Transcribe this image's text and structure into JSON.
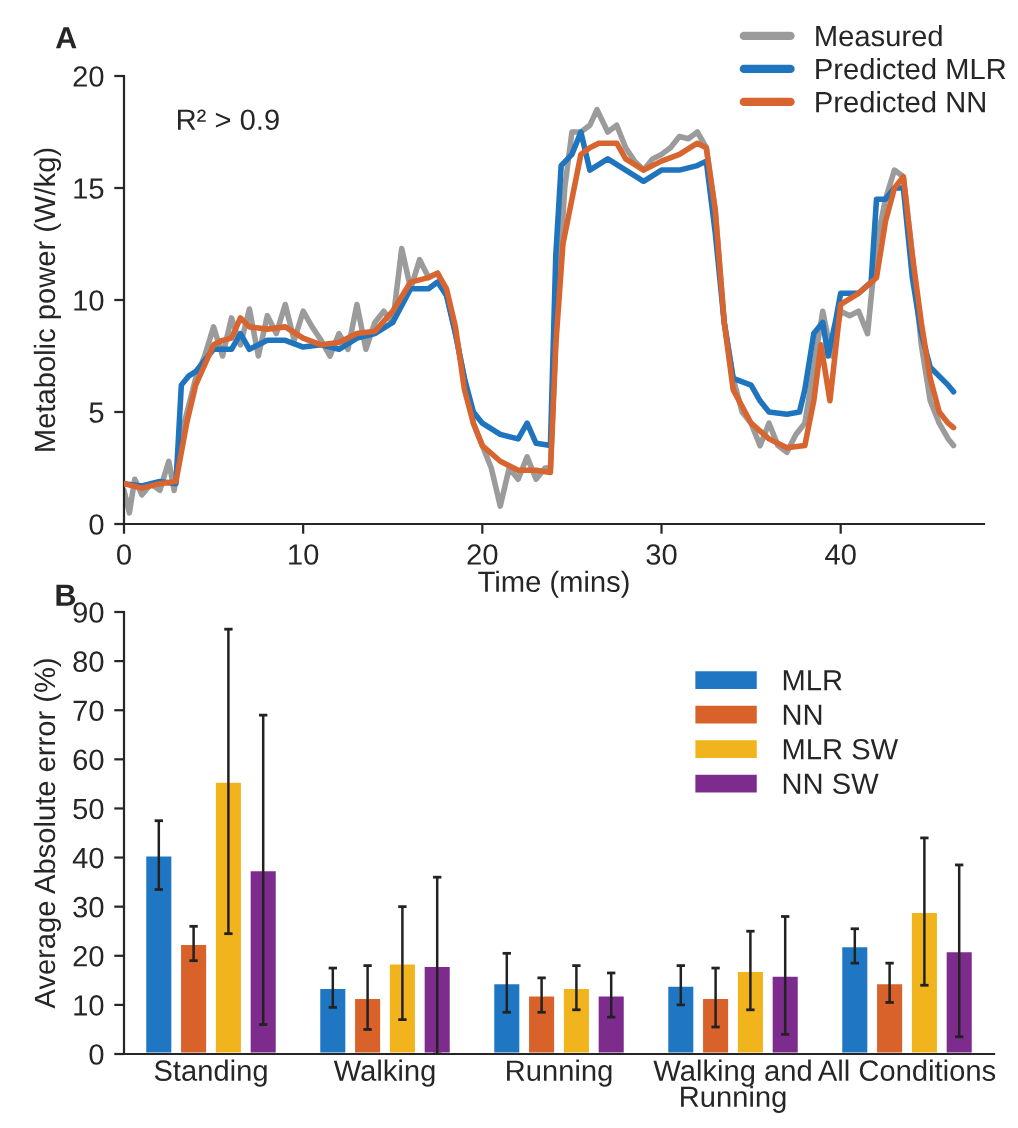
{
  "chart_data": [
    {
      "type": "line",
      "title": "A",
      "xlabel": "Time (mins)",
      "ylabel": "Metabolic power (W/kg)",
      "xlim": [
        0,
        48
      ],
      "xticks": [
        0,
        10,
        20,
        30,
        40
      ],
      "ylim": [
        0,
        20
      ],
      "yticks": [
        0,
        5,
        10,
        15,
        20
      ],
      "grid": false,
      "legend": "top right",
      "annotations": [
        "R² > 0.9"
      ],
      "series": [
        {
          "name": "Measured",
          "color": "#9b9b9b",
          "x": [
            0,
            0.3,
            0.6,
            1,
            1.5,
            2,
            2.5,
            2.8,
            3.2,
            4,
            4.5,
            5,
            5.5,
            6,
            6.5,
            7,
            7.5,
            8,
            8.5,
            9,
            9.5,
            10,
            10.5,
            11,
            11.5,
            12,
            12.5,
            13,
            13.5,
            14,
            14.5,
            15,
            15.5,
            16,
            16.5,
            17,
            17.5,
            18,
            18.5,
            19,
            19.5,
            20,
            20.5,
            21,
            21.5,
            22,
            22.5,
            23,
            23.5,
            23.8,
            24.2,
            24.6,
            25,
            25.5,
            26,
            26.4,
            27,
            27.5,
            28,
            28.5,
            29,
            29.5,
            30,
            30.5,
            31,
            31.5,
            32,
            32.5,
            33,
            33.5,
            34,
            34.5,
            35,
            35.5,
            36,
            36.5,
            37,
            37.5,
            38,
            38.5,
            39,
            39.5,
            40,
            40.5,
            41,
            41.5,
            42,
            42.5,
            43,
            43.5,
            44,
            44.5,
            45,
            45.5,
            46,
            46.3
          ],
          "values": [
            1.5,
            0.5,
            2,
            1.3,
            1.8,
            1.5,
            2.8,
            1.5,
            4,
            6.5,
            7.5,
            8.8,
            7.5,
            9.2,
            8,
            9.6,
            7.5,
            9.3,
            8.5,
            9.8,
            8.2,
            9.5,
            8.8,
            8.2,
            7.5,
            8.5,
            7.8,
            9.8,
            7.8,
            9,
            9.5,
            9,
            12.3,
            10.5,
            11.8,
            11,
            11.2,
            10.3,
            8.5,
            6.5,
            4.5,
            3.5,
            2.5,
            0.8,
            2.5,
            2,
            3,
            2,
            2.5,
            2.5,
            10,
            15,
            17.5,
            17.5,
            17.8,
            18.5,
            17.5,
            17.8,
            16.8,
            16.2,
            15.8,
            16.3,
            16.5,
            16.8,
            17.3,
            17.2,
            17.5,
            16.8,
            14,
            9,
            6.5,
            5,
            4.5,
            3.5,
            4.5,
            3.5,
            3.2,
            4,
            4.5,
            7,
            9.5,
            7.5,
            9.5,
            9.3,
            9.5,
            8.5,
            12.5,
            14.5,
            15.8,
            15.5,
            12,
            8,
            5.5,
            4.5,
            3.8,
            3.5
          ]
        },
        {
          "name": "Predicted MLR",
          "color": "#1f74be",
          "x": [
            0,
            1,
            2,
            2.9,
            3.2,
            3.6,
            4,
            5,
            6,
            6.5,
            7,
            8,
            9,
            10,
            11,
            12,
            13,
            14,
            15,
            16,
            17,
            17.5,
            18,
            18.5,
            19,
            19.5,
            20,
            21,
            22,
            22.5,
            23,
            23.8,
            24.1,
            24.4,
            25,
            25.5,
            26,
            27,
            28,
            29,
            30,
            31,
            32,
            32.5,
            33,
            33.5,
            34,
            35,
            35.5,
            36,
            37,
            37.7,
            38,
            38.5,
            39,
            39.3,
            39.7,
            40,
            41,
            41.7,
            42,
            42.5,
            43,
            43.5,
            44,
            44.5,
            45,
            46,
            46.3
          ],
          "values": [
            1.8,
            1.7,
            1.9,
            1.8,
            6.2,
            6.6,
            6.8,
            7.8,
            7.8,
            8.5,
            7.8,
            8.2,
            8.2,
            7.9,
            8,
            7.8,
            8.3,
            8.5,
            9,
            10.5,
            10.5,
            10.8,
            10.2,
            8.5,
            6.5,
            5,
            4.5,
            4,
            3.8,
            4.5,
            3.6,
            3.5,
            12,
            16,
            16.5,
            17.5,
            15.8,
            16.3,
            15.8,
            15.3,
            15.8,
            15.8,
            16,
            16.2,
            13,
            9,
            6.5,
            6.2,
            5.5,
            5,
            4.9,
            5,
            6,
            8.5,
            9,
            7.5,
            9,
            10.3,
            10.3,
            10.8,
            14.5,
            14.5,
            15,
            15,
            11,
            8.5,
            7,
            6.2,
            5.9
          ]
        },
        {
          "name": "Predicted NN",
          "color": "#d8652f",
          "x": [
            0,
            1,
            2,
            2.9,
            3.5,
            4,
            5,
            5.5,
            6,
            6.5,
            7,
            8,
            9,
            10,
            11,
            12,
            13,
            14,
            15,
            16,
            17,
            17.5,
            18,
            18.5,
            19,
            19.5,
            20,
            21,
            22,
            23,
            23.8,
            24.1,
            24.5,
            25,
            25.5,
            26,
            26.5,
            27.5,
            28,
            29,
            30,
            31,
            32,
            32.5,
            33,
            33.5,
            34,
            35,
            36,
            37,
            38,
            38.5,
            38.9,
            39.2,
            39.4,
            40,
            41,
            42,
            42.5,
            43,
            43.5,
            44,
            44.5,
            45,
            45.5,
            46,
            46.3
          ],
          "values": [
            1.8,
            1.6,
            1.8,
            1.9,
            4.5,
            6.2,
            8,
            8.2,
            8.3,
            9.2,
            8.8,
            8.7,
            8.8,
            8.3,
            8,
            8.1,
            8.5,
            8.6,
            9.5,
            10.8,
            11,
            11.2,
            10.5,
            8.8,
            6,
            4.5,
            3.5,
            2.8,
            2.4,
            2.4,
            2.3,
            8,
            12.5,
            14.5,
            16.5,
            16.8,
            17,
            17,
            16.3,
            15.8,
            16.2,
            16.5,
            17,
            16.8,
            14,
            9,
            6,
            4.5,
            3.8,
            3.4,
            3.5,
            5.5,
            8,
            6.5,
            5.5,
            9.8,
            10.3,
            11,
            13.5,
            15,
            15.5,
            12,
            9,
            6.5,
            5,
            4.5,
            4.3
          ]
        }
      ]
    },
    {
      "type": "bar",
      "title": "B",
      "ylabel": "Average Absolute error (%)",
      "categories": [
        "Standing",
        "Walking",
        "Running",
        "Walking and\nRunning",
        "All Conditions"
      ],
      "ylim": [
        0,
        90
      ],
      "yticks": [
        0,
        10,
        20,
        30,
        40,
        50,
        60,
        70,
        80,
        90
      ],
      "grid": false,
      "legend": "top right",
      "series": [
        {
          "name": "MLR",
          "color": "#1f77c4",
          "values": [
            40.5,
            13.5,
            14.5,
            14,
            22
          ],
          "errors": [
            7,
            4,
            6,
            4,
            3.5
          ]
        },
        {
          "name": "NN",
          "color": "#d9622b",
          "values": [
            22.5,
            11.5,
            12,
            11.5,
            14.5
          ],
          "errors": [
            3.5,
            6.5,
            3.5,
            6,
            4
          ]
        },
        {
          "name": "MLR SW",
          "color": "#f2b41d",
          "values": [
            55.5,
            18.5,
            13.5,
            17,
            29
          ],
          "errors": [
            31,
            11.5,
            4.5,
            8,
            15
          ]
        },
        {
          "name": "NN SW",
          "color": "#7e2b8e",
          "values": [
            37.5,
            18,
            12,
            16,
            21
          ],
          "errors": [
            31.5,
            18,
            4.5,
            12,
            17.5
          ]
        }
      ]
    }
  ]
}
